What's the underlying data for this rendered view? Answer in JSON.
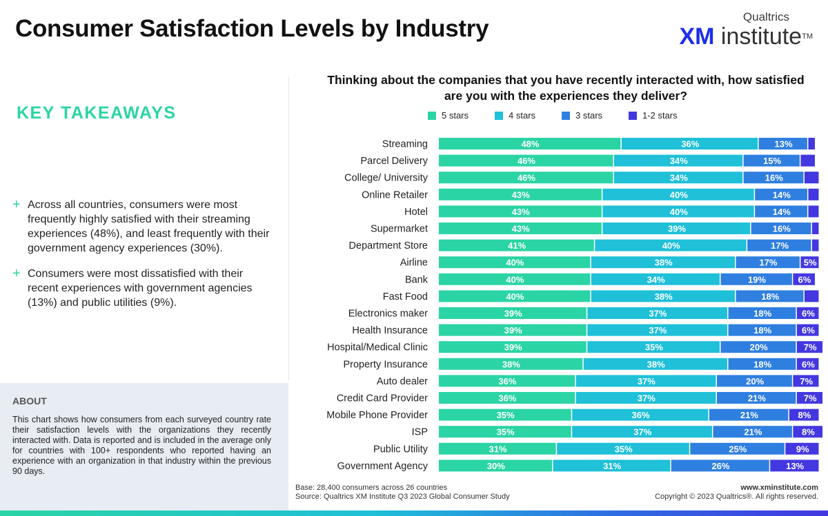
{
  "header": {
    "title": "Consumer Satisfaction Levels by Industry",
    "logo_brand": "Qualtrics",
    "logo_xm": "XM",
    "logo_word": "institute",
    "logo_tm": "TM"
  },
  "takeaways": {
    "title": "KEY TAKEAWAYS",
    "plus_glyph": "+",
    "items": [
      "Across all countries, consumers were most frequently highly satisfied with their streaming experiences (48%), and least frequently with their government agency experiences (30%).",
      "Consumers were most dissatisfied with their recent experiences with government agencies (13%) and public utilities (9%)."
    ]
  },
  "about": {
    "title": "ABOUT",
    "text": "This chart shows how consumers from each surveyed country rate their satisfaction levels with the organizations they recently interacted with. Data is reported and is included in the average only for countries with 100+ respondents who reported having an experience with an organization in that industry within the previous 90 days."
  },
  "footer": {
    "base": "Base: 28,400 consumers across 26 countries",
    "source": "Source: Qualtrics XM Institute Q3 2023 Global Consumer Study",
    "url": "www.xminstitute.com",
    "copyright": "Copyright © 2023 Qualtrics®. All rights reserved."
  },
  "colors": {
    "accent": "#2bd4a4",
    "five_stars": "#2bd4a4",
    "four_stars": "#1fc0d8",
    "three_stars": "#2f7fe0",
    "one_two_stars": "#4338e0"
  },
  "chart_data": {
    "type": "bar",
    "orientation": "horizontal",
    "stacked": true,
    "title": "Thinking about the companies that you have recently interacted with, how satisfied are you with the experiences they deliver?",
    "legend_position": "top",
    "xlim": [
      0,
      100
    ],
    "unit": "%",
    "categories": [
      "Streaming",
      "Parcel Delivery",
      "College/ University",
      "Online Retailer",
      "Hotel",
      "Supermarket",
      "Department Store",
      "Airline",
      "Bank",
      "Fast Food",
      "Electronics maker",
      "Health Insurance",
      "Hospital/Medical Clinic",
      "Property Insurance",
      "Auto dealer",
      "Credit Card Provider",
      "Mobile Phone Provider",
      "ISP",
      "Public Utility",
      "Government Agency"
    ],
    "series": [
      {
        "name": "5 stars",
        "values": [
          48,
          46,
          46,
          43,
          43,
          43,
          41,
          40,
          40,
          40,
          39,
          39,
          39,
          38,
          36,
          36,
          35,
          35,
          31,
          30
        ]
      },
      {
        "name": "4 stars",
        "values": [
          36,
          34,
          34,
          40,
          40,
          39,
          40,
          38,
          34,
          38,
          37,
          37,
          35,
          38,
          37,
          37,
          36,
          37,
          35,
          31
        ]
      },
      {
        "name": "3 stars",
        "values": [
          13,
          15,
          16,
          14,
          14,
          16,
          17,
          17,
          19,
          18,
          18,
          18,
          20,
          18,
          20,
          21,
          21,
          21,
          25,
          26
        ]
      },
      {
        "name": "1-2 stars",
        "values": [
          2,
          4,
          4,
          3,
          3,
          2,
          2,
          5,
          6,
          4,
          6,
          6,
          7,
          6,
          7,
          7,
          8,
          8,
          9,
          13
        ]
      }
    ],
    "series_colors": [
      "#2bd4a4",
      "#1fc0d8",
      "#2f7fe0",
      "#4338e0"
    ],
    "label_min": 5
  }
}
